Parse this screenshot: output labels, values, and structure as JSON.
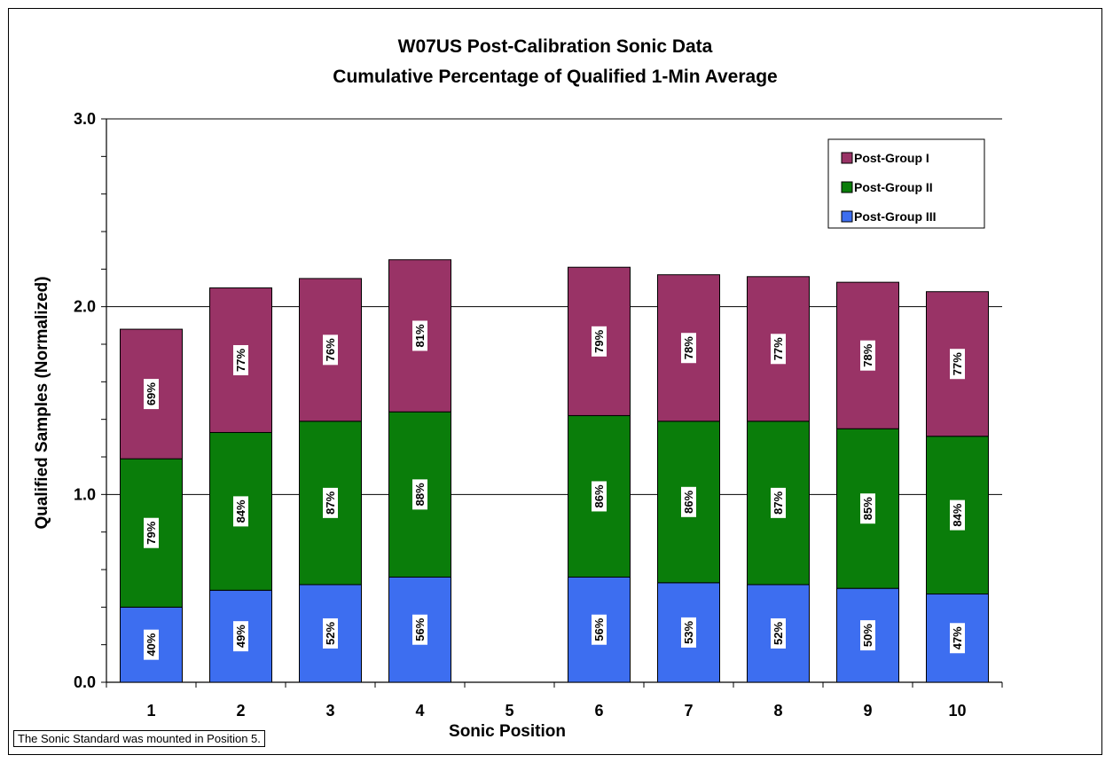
{
  "chart_data": {
    "type": "bar",
    "stacked": true,
    "title": "W07US Post-Calibration Sonic Data",
    "subtitle": "Cumulative Percentage of Qualified 1-Min Average",
    "xlabel": "Sonic Position",
    "ylabel": "Qualified Samples (Normalized)",
    "ylim": [
      0,
      3
    ],
    "yticks": [
      "0.0",
      "1.0",
      "2.0",
      "3.0"
    ],
    "grid": true,
    "legend_position": "top-right",
    "categories": [
      "1",
      "2",
      "3",
      "4",
      "5",
      "6",
      "7",
      "8",
      "9",
      "10"
    ],
    "series": [
      {
        "name": "Post-Group III",
        "color": "#3d6ef0",
        "values": [
          0.4,
          0.49,
          0.52,
          0.56,
          0,
          0.56,
          0.53,
          0.52,
          0.5,
          0.47
        ],
        "labels": [
          "40%",
          "49%",
          "52%",
          "56%",
          "",
          "56%",
          "53%",
          "52%",
          "50%",
          "47%"
        ]
      },
      {
        "name": "Post-Group II",
        "color": "#0a7d0a",
        "values": [
          0.79,
          0.84,
          0.87,
          0.88,
          0,
          0.86,
          0.86,
          0.87,
          0.85,
          0.84
        ],
        "labels": [
          "79%",
          "84%",
          "87%",
          "88%",
          "",
          "86%",
          "86%",
          "87%",
          "85%",
          "84%"
        ]
      },
      {
        "name": "Post-Group I",
        "color": "#993366",
        "values": [
          0.69,
          0.77,
          0.76,
          0.81,
          0,
          0.79,
          0.78,
          0.77,
          0.78,
          0.77
        ],
        "labels": [
          "69%",
          "77%",
          "76%",
          "81%",
          "",
          "79%",
          "78%",
          "77%",
          "78%",
          "77%"
        ]
      }
    ],
    "legend_order": [
      "Post-Group I",
      "Post-Group II",
      "Post-Group III"
    ]
  },
  "note": "The Sonic Standard was mounted in Position 5."
}
